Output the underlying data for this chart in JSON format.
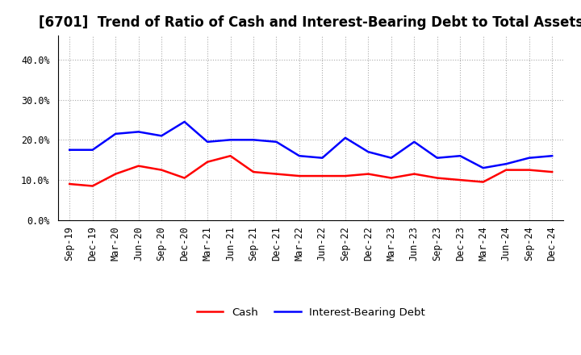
{
  "title": "[6701]  Trend of Ratio of Cash and Interest-Bearing Debt to Total Assets",
  "x_labels": [
    "Sep-19",
    "Dec-19",
    "Mar-20",
    "Jun-20",
    "Sep-20",
    "Dec-20",
    "Mar-21",
    "Jun-21",
    "Sep-21",
    "Dec-21",
    "Mar-22",
    "Jun-22",
    "Sep-22",
    "Dec-22",
    "Mar-23",
    "Jun-23",
    "Sep-23",
    "Dec-23",
    "Mar-24",
    "Jun-24",
    "Sep-24",
    "Dec-24"
  ],
  "cash": [
    9.0,
    8.5,
    11.5,
    13.5,
    12.5,
    10.5,
    14.5,
    16.0,
    12.0,
    11.5,
    11.0,
    11.0,
    11.0,
    11.5,
    10.5,
    11.5,
    10.5,
    10.0,
    9.5,
    12.5,
    12.5,
    12.0
  ],
  "ibd": [
    17.5,
    17.5,
    21.5,
    22.0,
    21.0,
    24.5,
    19.5,
    20.0,
    20.0,
    19.5,
    16.0,
    15.5,
    20.5,
    17.0,
    15.5,
    19.5,
    15.5,
    16.0,
    13.0,
    14.0,
    15.5,
    16.0
  ],
  "cash_color": "#ff0000",
  "ibd_color": "#0000ff",
  "ylim": [
    0,
    46
  ],
  "yticks": [
    0,
    10,
    20,
    30,
    40
  ],
  "ytick_labels": [
    "0.0%",
    "10.0%",
    "20.0%",
    "30.0%",
    "40.0%"
  ],
  "legend_cash": "Cash",
  "legend_ibd": "Interest-Bearing Debt",
  "bg_color": "#ffffff",
  "plot_bg_color": "#ffffff",
  "grid_color": "#aaaaaa",
  "line_width": 1.8,
  "title_fontsize": 12,
  "tick_fontsize": 8.5,
  "legend_fontsize": 9.5
}
